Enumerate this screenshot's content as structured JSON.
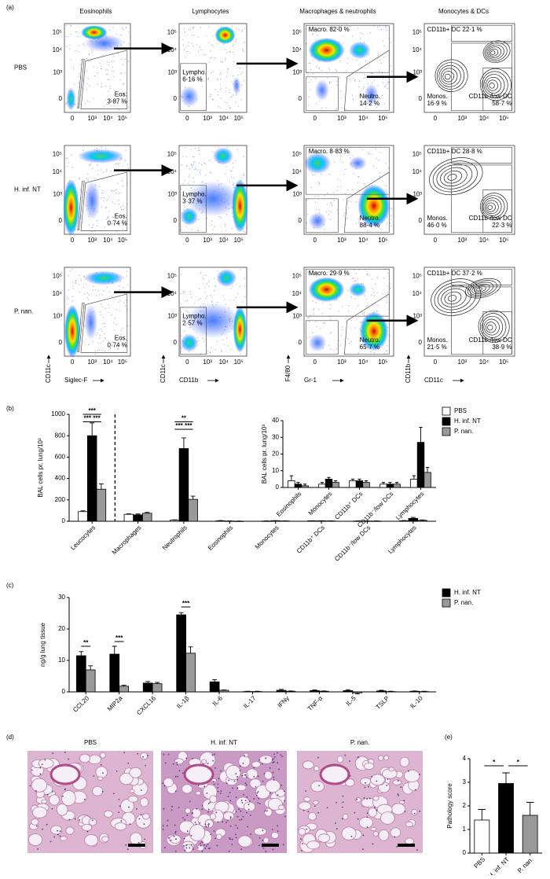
{
  "panels": [
    "(a)",
    "(b)",
    "(c)",
    "(d)",
    "(e)"
  ],
  "flow": {
    "populations": [
      "Eosinophils",
      "Lymphocytes",
      "Macrophages & neutrophils",
      "Monocytes & DCs"
    ],
    "groups": [
      "PBS",
      "H. inf. NT",
      "P. nan."
    ],
    "axes": [
      {
        "y": "CD11c",
        "x": "Siglec-F"
      },
      {
        "y": "CD11c",
        "x": "CD11b"
      },
      {
        "y": "F4/80",
        "x": "Gr-1"
      },
      {
        "y": "CD11b",
        "x": "CD11c"
      }
    ],
    "ticks": [
      "0",
      "10³",
      "10⁴",
      "10⁵"
    ],
    "gates": [
      [
        {
          "name": "Eos.",
          "percent": "3·87 %"
        },
        {
          "name": "Lympho.",
          "percent": "6·16 %"
        },
        {
          "name": "Macro.",
          "percent": "82·0 %"
        },
        {
          "name": "Neutro.",
          "percent": "14·2 %"
        },
        {
          "name": "CD11b+ DC",
          "percent": "22·1 %"
        },
        {
          "name": "Monos.",
          "percent": "16·9 %"
        },
        {
          "name": "CD11b-/low DC",
          "percent": "58·7 %"
        }
      ],
      [
        {
          "name": "Eos.",
          "percent": "0·74 %"
        },
        {
          "name": "Lympho.",
          "percent": "3·37 %"
        },
        {
          "name": "Macro.",
          "percent": "8·83 %"
        },
        {
          "name": "Neutro.",
          "percent": "88·4 %"
        },
        {
          "name": "CD11b+ DC",
          "percent": "28·8 %"
        },
        {
          "name": "Monos.",
          "percent": "46·0 %"
        },
        {
          "name": "CD11b-/low DC",
          "percent": "22·3 %"
        }
      ],
      [
        {
          "name": "Eos.",
          "percent": "0·74 %"
        },
        {
          "name": "Lympho.",
          "percent": "2·57 %"
        },
        {
          "name": "Macro.",
          "percent": "29·9 %"
        },
        {
          "name": "Neutro.",
          "percent": "65·7 %"
        },
        {
          "name": "CD11b+ DC",
          "percent": "37·2 %"
        },
        {
          "name": "Monos.",
          "percent": "21·5 %"
        },
        {
          "name": "CD11b-/low DC",
          "percent": "38·9 %"
        }
      ]
    ]
  },
  "histology": {
    "titles": [
      "PBS",
      "H. inf. NT",
      "P. nan."
    ]
  },
  "chart_data": [
    {
      "type": "bar",
      "y_label": "BAL cells pr. lung/10³",
      "legend": "upper right",
      "categories": [
        "Leucocytes",
        "Macrophages",
        "Neutrophils",
        "Eosinophils",
        "Monocytes",
        "CD11b⁺ DCs",
        "CD11b⁻/low DCs",
        "Lymphocytes"
      ],
      "series": [
        {
          "name": "PBS",
          "color": "#ffffff",
          "values": [
            90,
            65,
            10,
            4,
            2,
            4,
            2,
            5
          ],
          "errors": [
            8,
            5,
            3,
            3,
            1,
            1,
            1,
            2
          ]
        },
        {
          "name": "H. inf. NT",
          "color": "#000000",
          "values": [
            800,
            60,
            680,
            2,
            5,
            4,
            2,
            27
          ],
          "errors": [
            120,
            8,
            100,
            1,
            1,
            1,
            1,
            9
          ]
        },
        {
          "name": "P. nan.",
          "color": "#999999",
          "values": [
            300,
            75,
            205,
            1,
            3,
            3,
            2,
            9
          ],
          "errors": [
            50,
            8,
            30,
            1,
            1,
            1,
            1,
            3
          ]
        }
      ],
      "ylim": [
        0,
        1000
      ],
      "yticks": [
        0,
        200,
        400,
        600,
        800,
        1000
      ],
      "significance": [
        "***",
        "***",
        "***",
        "**",
        "***",
        "***"
      ]
    },
    {
      "type": "bar",
      "y_label": "BAL cells pr. lung/10³",
      "categories": [
        "Eosinophils",
        "Monocytes",
        "CD11b⁺ DCs",
        "CD11b⁻/low DCs",
        "Lymphocytes"
      ],
      "series": [
        {
          "color": "#ffffff",
          "values": [
            4,
            2,
            4,
            2,
            5
          ],
          "errors": [
            3,
            1,
            1,
            1,
            2
          ]
        },
        {
          "color": "#000000",
          "values": [
            2,
            5,
            4,
            2,
            27
          ],
          "errors": [
            1,
            1,
            1,
            1,
            9
          ]
        },
        {
          "color": "#999999",
          "values": [
            1,
            3,
            3,
            2,
            9
          ],
          "errors": [
            1,
            1,
            1,
            1,
            3
          ]
        }
      ],
      "ylim": [
        0,
        40
      ],
      "yticks": [
        0,
        10,
        20,
        30,
        40
      ]
    },
    {
      "type": "bar",
      "y_label": "ng/g lung tissue",
      "legend": "upper right",
      "categories": [
        "CCL20",
        "MIP2a",
        "CXCL16",
        "IL-1β",
        "IL-6",
        "IL-17",
        "IFNγ",
        "TNF-α",
        "IL-5",
        "TSLP",
        "IL-10"
      ],
      "series": [
        {
          "name": "H. inf. NT",
          "color": "#000000",
          "values": [
            11.5,
            12,
            2.8,
            24.5,
            3.2,
            0.1,
            0.5,
            0.4,
            0.4,
            0.3,
            0.2
          ],
          "errors": [
            1.3,
            2.5,
            0.5,
            0.7,
            0.7,
            0.1,
            0.3,
            0.2,
            0.3,
            0.2,
            0.1
          ]
        },
        {
          "name": "P. nan.",
          "color": "#999999",
          "values": [
            7,
            1.8,
            2.6,
            12.3,
            0.5,
            0.1,
            0.2,
            0.2,
            -0.3,
            0.1,
            0.1
          ],
          "errors": [
            1.3,
            0.3,
            0.4,
            2,
            0.1,
            0.1,
            0.1,
            0.1,
            0.3,
            0.1,
            0.1
          ]
        }
      ],
      "ylim": [
        0,
        30
      ],
      "yticks": [
        0,
        10,
        20,
        30
      ],
      "significance": [
        "**",
        "***",
        "***"
      ]
    },
    {
      "type": "bar",
      "y_label": "Pathology score",
      "categories": [
        "PBS",
        "H. inf. NT",
        "P. nan."
      ],
      "values": [
        1.4,
        2.95,
        1.6
      ],
      "errors": [
        0.45,
        0.45,
        0.55
      ],
      "colors": [
        "#ffffff",
        "#000000",
        "#999999"
      ],
      "ylim": [
        0,
        4
      ],
      "yticks": [
        0,
        1,
        2,
        3,
        4
      ],
      "significance": [
        "*",
        "*"
      ]
    }
  ]
}
